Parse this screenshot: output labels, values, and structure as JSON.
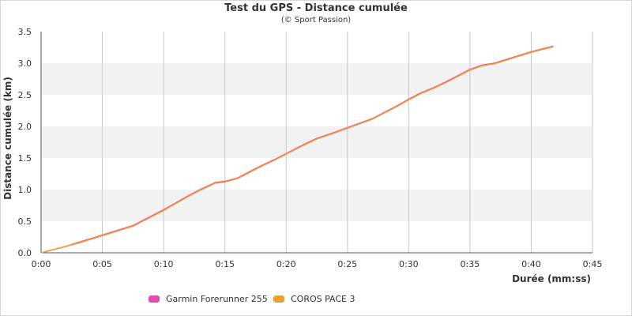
{
  "colors": {
    "garmin": "#e64bb4",
    "coros": "#f0a030",
    "band": "#f2f2f2",
    "grid": "#c8c8c8"
  },
  "chart_data": {
    "type": "line",
    "title": "Test du GPS - Distance cumulée",
    "subtitle": "(© Sport Passion)",
    "xlabel": "Durée (mm:ss)",
    "ylabel": "Distance cumulée (km)",
    "x_unit": "minutes",
    "xlim": [
      0,
      45
    ],
    "ylim": [
      0,
      3.5
    ],
    "x_ticks": [
      0,
      5,
      10,
      15,
      20,
      25,
      30,
      35,
      40,
      45
    ],
    "x_tick_labels": [
      "0:00",
      "0:05",
      "0:10",
      "0:15",
      "0:20",
      "0:25",
      "0:30",
      "0:35",
      "0:40",
      "0:45"
    ],
    "y_ticks": [
      0,
      0.5,
      1,
      1.5,
      2,
      2.5,
      3,
      3.5
    ],
    "y_tick_labels": [
      "0.0",
      "0.5",
      "1.0",
      "1.5",
      "2.0",
      "2.5",
      "3.0",
      "3.5"
    ],
    "grid": "vertical lines, alternating horizontal bands",
    "legend_position": "bottom-center",
    "series": [
      {
        "name": "Garmin Forerunner 255",
        "x": [
          0,
          1,
          2,
          3,
          4,
          5,
          6,
          7.5,
          9,
          10,
          11,
          12,
          13,
          14.2,
          15,
          16,
          17,
          18,
          19,
          20,
          21,
          22.5,
          24,
          25,
          26,
          27,
          28,
          29,
          30,
          31,
          32,
          33,
          34,
          35,
          36,
          37,
          38,
          39,
          40,
          41,
          41.8
        ],
        "y": [
          0,
          0.05,
          0.1,
          0.16,
          0.22,
          0.28,
          0.34,
          0.43,
          0.58,
          0.68,
          0.79,
          0.9,
          1.0,
          1.11,
          1.13,
          1.18,
          1.28,
          1.38,
          1.47,
          1.57,
          1.67,
          1.81,
          1.91,
          1.98,
          2.05,
          2.12,
          2.22,
          2.32,
          2.43,
          2.53,
          2.61,
          2.7,
          2.8,
          2.9,
          2.97,
          3.0,
          3.06,
          3.12,
          3.18,
          3.23,
          3.27
        ]
      },
      {
        "name": "COROS PACE 3",
        "x": [
          0,
          1,
          2,
          3,
          4,
          5,
          6,
          7.5,
          9,
          10,
          11,
          12,
          13,
          14.2,
          15,
          16,
          17,
          18,
          19,
          20,
          21,
          22.5,
          24,
          25,
          26,
          27,
          28,
          29,
          30,
          31,
          32,
          33,
          34,
          35,
          36,
          37,
          38,
          39,
          40,
          41,
          41.8
        ],
        "y": [
          0,
          0.05,
          0.1,
          0.15,
          0.21,
          0.27,
          0.33,
          0.42,
          0.57,
          0.67,
          0.78,
          0.89,
          0.99,
          1.1,
          1.12,
          1.17,
          1.27,
          1.37,
          1.46,
          1.56,
          1.66,
          1.8,
          1.9,
          1.97,
          2.04,
          2.11,
          2.21,
          2.31,
          2.42,
          2.52,
          2.6,
          2.69,
          2.79,
          2.89,
          2.96,
          2.99,
          3.05,
          3.11,
          3.17,
          3.22,
          3.26
        ]
      }
    ]
  }
}
